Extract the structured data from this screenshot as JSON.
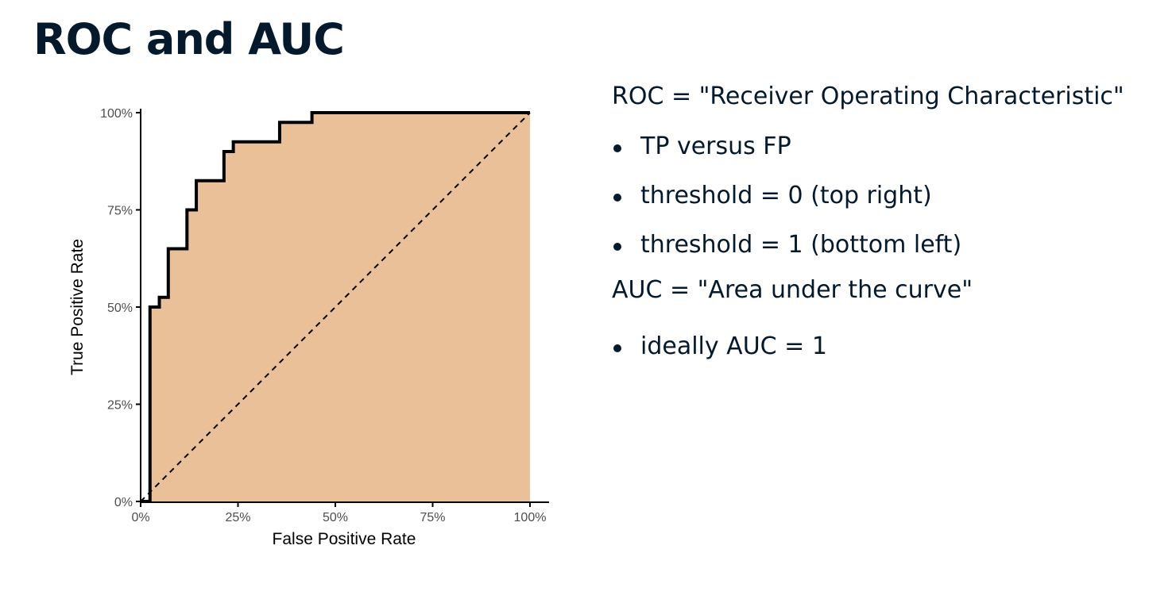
{
  "slide": {
    "title": "ROC and AUC"
  },
  "text_panel": {
    "roc_definition": "ROC = \"Receiver Operating Characteristic\"",
    "roc_bullets": [
      "TP versus FP",
      "threshold = 0 (top right)",
      "threshold = 1 (bottom left)"
    ],
    "auc_definition": "AUC = \"Area under the curve\"",
    "auc_bullets": [
      "ideally AUC = 1"
    ]
  },
  "chart_data": {
    "type": "line",
    "title": "",
    "xlabel": "False Positive Rate",
    "ylabel": "True Positive Rate",
    "xlim": [
      0,
      1
    ],
    "ylim": [
      0,
      1
    ],
    "x_ticks": [
      0,
      0.25,
      0.5,
      0.75,
      1
    ],
    "x_tick_labels": [
      "0%",
      "25%",
      "50%",
      "75%",
      "100%"
    ],
    "y_ticks": [
      0,
      0.25,
      0.5,
      0.75,
      1
    ],
    "y_tick_labels": [
      "0%",
      "25%",
      "50%",
      "75%",
      "100%"
    ],
    "grid": false,
    "area_fill": "under-curve",
    "colors": {
      "area": "#e9c097",
      "curve": "#000000",
      "diagonal": "#000000",
      "axis": "#000000",
      "tick_label": "#4d4d4d",
      "axis_label": "#000000"
    },
    "series": [
      {
        "x": [
          0,
          0.024,
          0.024,
          0.048,
          0.048,
          0.071,
          0.071,
          0.119,
          0.119,
          0.143,
          0.143,
          0.214,
          0.214,
          0.238,
          0.238,
          0.357,
          0.357,
          0.44,
          0.44,
          1.0
        ],
        "y": [
          0,
          0,
          0.5,
          0.5,
          0.525,
          0.525,
          0.65,
          0.65,
          0.75,
          0.75,
          0.825,
          0.825,
          0.9,
          0.9,
          0.925,
          0.925,
          0.975,
          0.975,
          1.0,
          1.0
        ]
      },
      {
        "x": [
          0,
          1
        ],
        "y": [
          0,
          1
        ],
        "style": "dashed"
      }
    ]
  }
}
